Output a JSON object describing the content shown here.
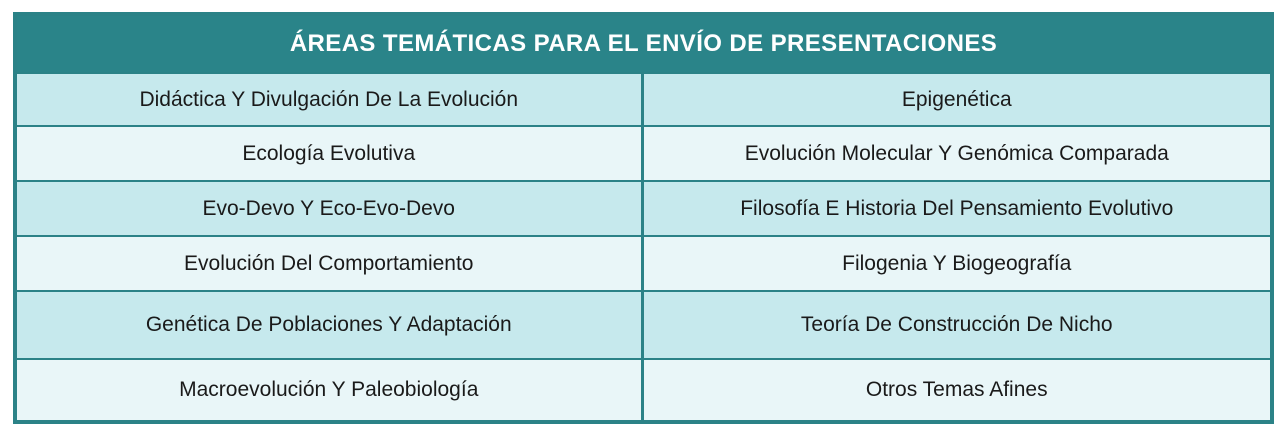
{
  "title": "ÁREAS TEMÁTICAS PARA EL ENVÍO DE PRESENTACIONES",
  "table": {
    "rows": [
      {
        "left": "Didáctica Y Divulgación De La Evolución",
        "right": "Epigenética"
      },
      {
        "left": "Ecología Evolutiva",
        "right": "Evolución Molecular Y Genómica Comparada"
      },
      {
        "left": "Evo-Devo Y Eco-Evo-Devo",
        "right": "Filosofía E Historia Del Pensamiento Evolutivo"
      },
      {
        "left": "Evolución Del Comportamiento",
        "right": "Filogenia Y Biogeografía"
      },
      {
        "left": "Genética De Poblaciones Y Adaptación",
        "right": "Teoría De Construcción De Nicho"
      },
      {
        "left": "Macroevolución Y Paleobiología",
        "right": "Otros Temas Afines"
      }
    ]
  },
  "colors": {
    "header_bg": "#2a8489",
    "border": "#2b8287",
    "row_dark": "#c6e9ed",
    "row_light": "#e9f6f8",
    "header_text": "#ffffff",
    "cell_text": "#1a1a1a"
  }
}
